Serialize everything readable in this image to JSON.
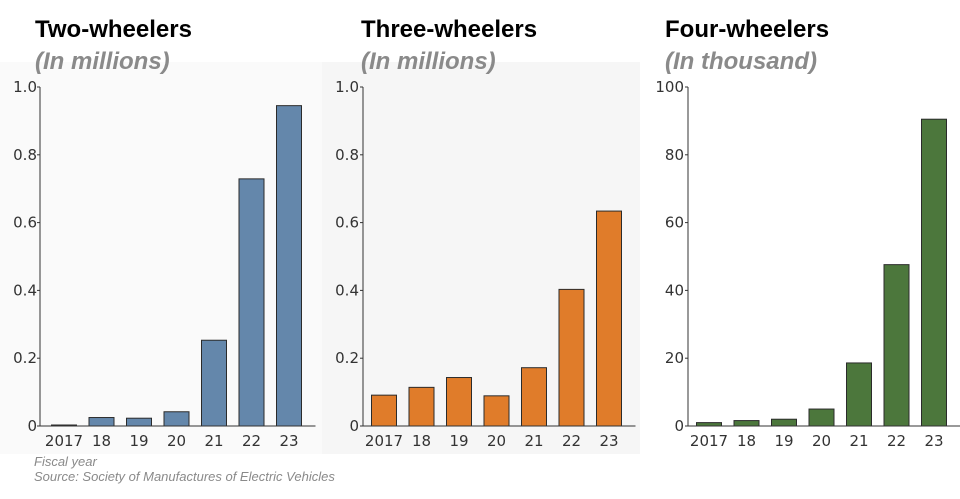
{
  "chart_data": [
    {
      "type": "bar",
      "title": "Two-wheelers",
      "subtitle": "(In millions)",
      "categories": [
        "2017",
        "18",
        "19",
        "20",
        "21",
        "22",
        "23"
      ],
      "values": [
        0.002,
        0.025,
        0.023,
        0.042,
        0.253,
        0.729,
        0.945
      ],
      "ylim": [
        0,
        1.0
      ],
      "yticks": [
        0,
        0.2,
        0.4,
        0.6,
        0.8,
        1.0
      ],
      "ytick_labels": [
        "0",
        "0.2",
        "0.4",
        "0.6",
        "0.8",
        "1.0"
      ],
      "color": "#6487ab"
    },
    {
      "type": "bar",
      "title": "Three-wheelers",
      "subtitle": "(In millions)",
      "categories": [
        "2017",
        "18",
        "19",
        "20",
        "21",
        "22",
        "23"
      ],
      "values": [
        0.091,
        0.114,
        0.143,
        0.089,
        0.172,
        0.403,
        0.634
      ],
      "ylim": [
        0,
        1.0
      ],
      "yticks": [
        0,
        0.2,
        0.4,
        0.6,
        0.8,
        1.0
      ],
      "ytick_labels": [
        "0",
        "0.2",
        "0.4",
        "0.6",
        "0.8",
        "1.0"
      ],
      "color": "#e07c2a"
    },
    {
      "type": "bar",
      "title": "Four-wheelers",
      "subtitle": "(In thousand)",
      "categories": [
        "2017",
        "18",
        "19",
        "20",
        "21",
        "22",
        "23"
      ],
      "values": [
        1.0,
        1.6,
        2.0,
        5.0,
        18.6,
        47.6,
        90.5
      ],
      "ylim": [
        0,
        100
      ],
      "yticks": [
        0,
        20,
        40,
        60,
        80,
        100
      ],
      "ytick_labels": [
        "0",
        "20",
        "40",
        "60",
        "80",
        "100"
      ],
      "color": "#4c773c"
    }
  ],
  "footer": {
    "xlabel_note": "Fiscal year",
    "source": "Source: Society of Manufactures of Electric Vehicles"
  }
}
